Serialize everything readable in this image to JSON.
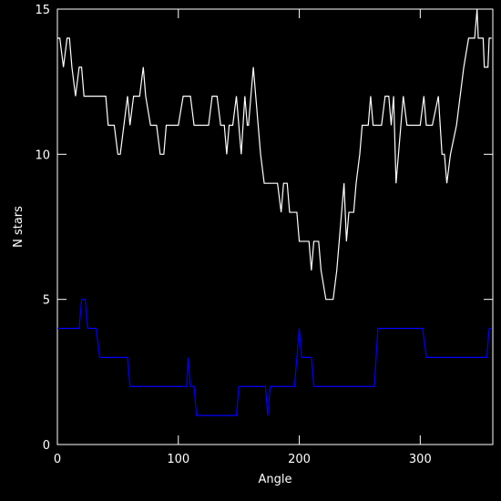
{
  "chart_data": {
    "type": "line",
    "x_label": "Angle",
    "y_label": "N stars",
    "xlim": [
      0,
      360
    ],
    "ylim": [
      0,
      15
    ],
    "xticks": [
      0,
      100,
      200,
      300
    ],
    "yticks": [
      0,
      5,
      10,
      15
    ],
    "series": [
      {
        "color": "#ffffff",
        "x": [
          0,
          2,
          5,
          8,
          10,
          12,
          15,
          18,
          20,
          22,
          30,
          40,
          42,
          47,
          50,
          52,
          55,
          58,
          60,
          63,
          68,
          71,
          73,
          77,
          82,
          85,
          88,
          90,
          95,
          100,
          104,
          110,
          113,
          125,
          128,
          132,
          135,
          138,
          140,
          142,
          145,
          148,
          150,
          152,
          155,
          157,
          158,
          162,
          164,
          168,
          171,
          180,
          182,
          185,
          187,
          190,
          192,
          198,
          200,
          205,
          208,
          210,
          212,
          216,
          218,
          222,
          228,
          231,
          237,
          239,
          241,
          245,
          247,
          250,
          252,
          257,
          259,
          261,
          268,
          271,
          274,
          276,
          278,
          280,
          282,
          284,
          286,
          289,
          300,
          303,
          305,
          310,
          315,
          318,
          320,
          322,
          325,
          330,
          333,
          336,
          340,
          345,
          347,
          348,
          352,
          353,
          356,
          357,
          359
        ],
        "values": [
          14,
          14,
          13,
          14,
          14,
          13,
          12,
          13,
          13,
          12,
          12,
          12,
          11,
          11,
          10,
          10,
          11,
          12,
          11,
          12,
          12,
          13,
          12,
          11,
          11,
          10,
          10,
          11,
          11,
          11,
          12,
          12,
          11,
          11,
          12,
          12,
          11,
          11,
          10,
          11,
          11,
          12,
          11,
          10,
          12,
          11,
          11,
          13,
          12,
          10,
          9,
          9,
          9,
          8,
          9,
          9,
          8,
          8,
          7,
          7,
          7,
          6,
          7,
          7,
          6,
          5,
          5,
          6,
          9,
          7,
          8,
          8,
          9,
          10,
          11,
          11,
          12,
          11,
          11,
          12,
          12,
          11,
          12,
          9,
          10,
          11,
          12,
          11,
          11,
          12,
          11,
          11,
          12,
          10,
          10,
          9,
          10,
          11,
          12,
          13,
          14,
          14,
          15,
          14,
          14,
          13,
          13,
          14,
          14
        ]
      },
      {
        "color": "#0000ff",
        "x": [
          0,
          18,
          20,
          23,
          25,
          32,
          35,
          58,
          60,
          107,
          108,
          110,
          113,
          115,
          148,
          150,
          172,
          174,
          176,
          196,
          200,
          202,
          210,
          212,
          262,
          265,
          302,
          305,
          355,
          357,
          359
        ],
        "values": [
          4,
          4,
          5,
          5,
          4,
          4,
          3,
          3,
          2,
          2,
          3,
          2,
          2,
          1,
          1,
          2,
          2,
          1,
          2,
          2,
          4,
          3,
          3,
          2,
          2,
          4,
          4,
          3,
          3,
          4,
          4
        ]
      }
    ]
  }
}
